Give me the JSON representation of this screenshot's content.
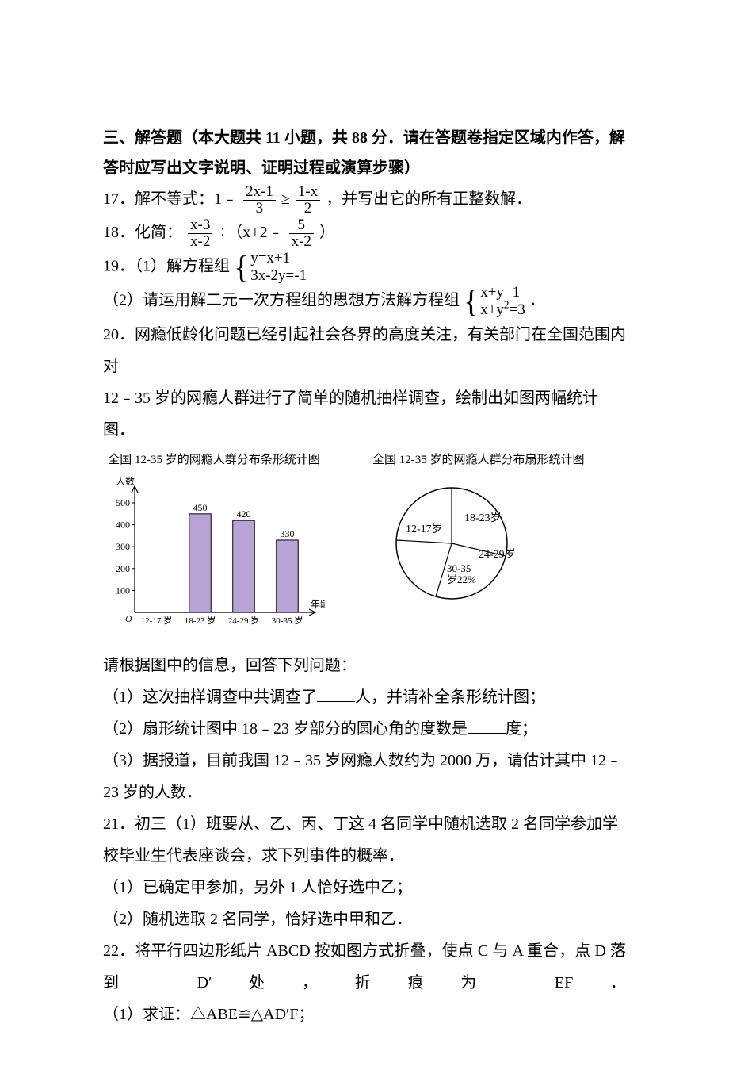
{
  "section_header": "三、解答题（本大题共 11 小题，共 88 分．请在答题卷指定区域内作答，解答时应写出文字说明、证明过程或演算步骤）",
  "q17": {
    "prefix": "17．解不等式：1﹣",
    "frac1_num": "2x-1",
    "frac1_den": "3",
    "ge": "≥",
    "frac2_num": "1-x",
    "frac2_den": "2",
    "suffix": "，并写出它的所有正整数解．"
  },
  "q18": {
    "prefix": "18．化简：",
    "fracA_num": "x-3",
    "fracA_den": "x-2",
    "mid": "÷（x+2﹣",
    "fracB_num": "5",
    "fracB_den": "x-2",
    "suffix": "）"
  },
  "q19": {
    "part1_prefix": "19．（1）解方程组",
    "sys1_row1": "y=x+1",
    "sys1_row2": "3x-2y=-1",
    "part2_prefix": "（2）请运用解二元一次方程组的思想方法解方程组",
    "sys2_row1": "x+y=1",
    "sys2_row2_a": "x+y",
    "sys2_row2_b": "=3",
    "period": "．"
  },
  "q20": {
    "intro_l1": "20．网瘾低龄化问题已经引起社会各界的高度关注，有关部门在全国范围内对",
    "intro_l2": "12﹣35 岁的网瘾人群进行了简单的随机抽样调查，绘制出如图两幅统计图．",
    "bar_chart": {
      "title": "全国 12-35 岁的网瘾人群分布条形统计图",
      "y_axis_label": "人数",
      "x_axis_label": "年龄",
      "y_ticks": [
        100,
        200,
        300,
        400,
        500
      ],
      "categories": [
        "12-17 岁",
        "18-23 岁",
        "24-29 岁",
        "30-35 岁"
      ],
      "values": [
        null,
        450,
        420,
        330
      ],
      "value_labels": [
        "",
        "450",
        "420",
        "330"
      ],
      "bar_color": "#b8a2d6",
      "axis_color": "#000000",
      "label_fontsize": 12,
      "y_max": 540
    },
    "pie_chart": {
      "title": "全国 12-35 岁的网瘾人群分布扇形统计图",
      "labels": [
        "18-23岁",
        "24-29岁",
        "30-35\n岁22%",
        "12-17岁"
      ],
      "stroke": "#000000",
      "fill": "#ffffff"
    },
    "after_charts": "请根据图中的信息，回答下列问题：",
    "p1_a": "（1）这次抽样调查中共调查了",
    "p1_b": "人，并请补全条形统计图；",
    "p2_a": "（2）扇形统计图中 18﹣23 岁部分的圆心角的度数是",
    "p2_b": "度；",
    "p3": "（3）据报道，目前我国 12﹣35 岁网瘾人数约为 2000 万，请估计其中 12﹣23 岁的人数．"
  },
  "q21": {
    "intro": "21．初三（1）班要从、乙、丙、丁这 4 名同学中随机选取 2 名同学参加学校毕业生代表座谈会，求下列事件的概率．",
    "p1": "（1）已确定甲参加，另外 1 人恰好选中乙；",
    "p2": "（2）随机选取 2 名同学，恰好选中甲和乙．"
  },
  "q22": {
    "intro": "22．将平行四边形纸片 ABCD 按如图方式折叠，使点 C 与 A 重合，点 D 落到 D′处，折痕为 EF．",
    "p1": "（1）求证：△ABE≌△AD′F；"
  }
}
